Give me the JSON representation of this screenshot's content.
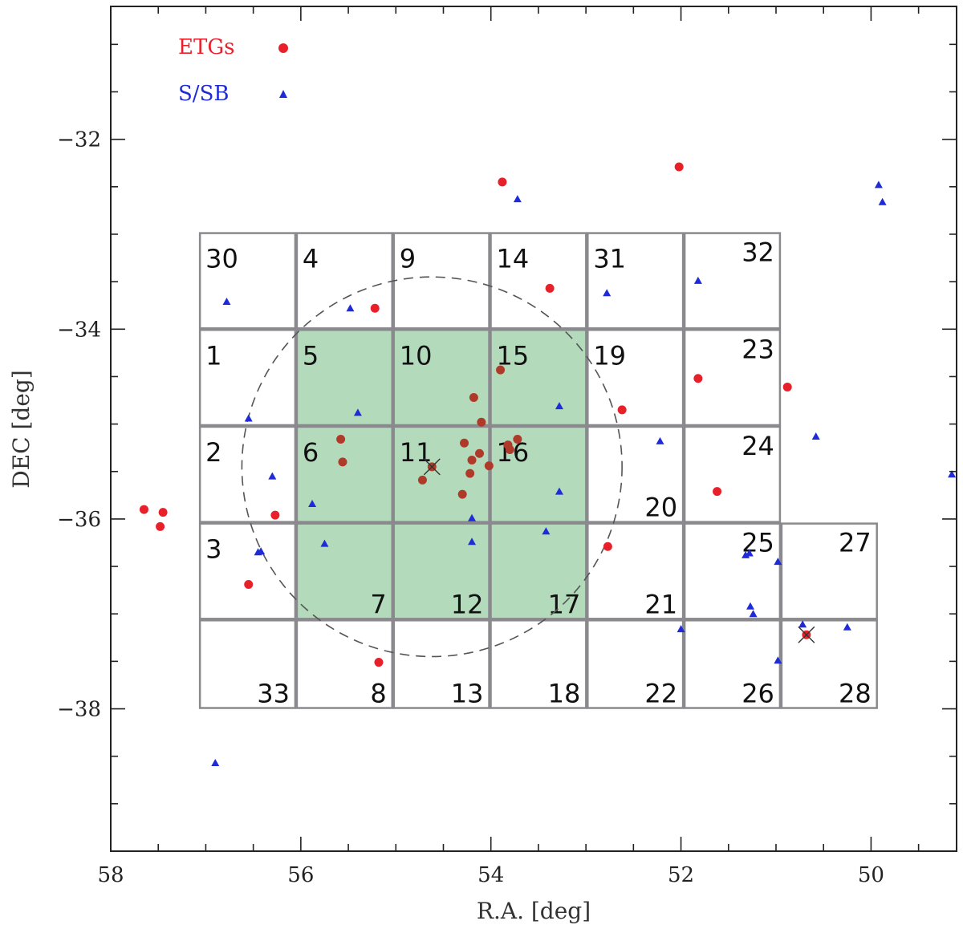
{
  "chart_data": {
    "type": "scatter",
    "xlabel": "R.A. [deg]",
    "ylabel": "DEC [deg]",
    "xlim": [
      58,
      49.1
    ],
    "ylim": [
      -39.5,
      -30.6
    ],
    "x_ticks": [
      "58",
      "56",
      "54",
      "52",
      "50"
    ],
    "y_ticks": [
      "-32",
      "-34",
      "-36",
      "-38"
    ],
    "legend": {
      "placement": "top-left",
      "entries": [
        {
          "label": "ETGs",
          "color": "#e8202a",
          "marker": "circle"
        },
        {
          "label": "S/SB",
          "color": "#1f2bd6",
          "marker": "triangle"
        }
      ]
    },
    "colors": {
      "etg": "#e8202a",
      "etg_inside": "#b03a2a",
      "ssb": "#1f2bd6",
      "highlight_fill": "#b3dbbb",
      "tile_border": "#8a8a8e",
      "circle": "#555555"
    },
    "circle": {
      "center_ra": 54.62,
      "center_dec": -35.45,
      "radius_deg": 2.0
    },
    "tiles": [
      {
        "id": "30",
        "ra_min": 56.05,
        "ra_max": 57.07,
        "dec_min": -34.0,
        "dec_max": -32.98,
        "highlight": false
      },
      {
        "id": "4",
        "ra_min": 55.03,
        "ra_max": 56.05,
        "dec_min": -34.0,
        "dec_max": -32.98,
        "highlight": false
      },
      {
        "id": "9",
        "ra_min": 54.01,
        "ra_max": 55.03,
        "dec_min": -34.0,
        "dec_max": -32.98,
        "highlight": false
      },
      {
        "id": "14",
        "ra_min": 52.99,
        "ra_max": 54.01,
        "dec_min": -34.0,
        "dec_max": -32.98,
        "highlight": false
      },
      {
        "id": "31",
        "ra_min": 51.97,
        "ra_max": 52.99,
        "dec_min": -34.0,
        "dec_max": -32.98,
        "highlight": false
      },
      {
        "id": "32",
        "ra_min": 50.95,
        "ra_max": 51.97,
        "dec_min": -34.0,
        "dec_max": -32.98,
        "highlight": false
      },
      {
        "id": "1",
        "ra_min": 56.05,
        "ra_max": 57.07,
        "dec_min": -35.02,
        "dec_max": -34.0,
        "highlight": false
      },
      {
        "id": "5",
        "ra_min": 55.03,
        "ra_max": 56.05,
        "dec_min": -35.02,
        "dec_max": -34.0,
        "highlight": true
      },
      {
        "id": "10",
        "ra_min": 54.01,
        "ra_max": 55.03,
        "dec_min": -35.02,
        "dec_max": -34.0,
        "highlight": true
      },
      {
        "id": "15",
        "ra_min": 52.99,
        "ra_max": 54.01,
        "dec_min": -35.02,
        "dec_max": -34.0,
        "highlight": true
      },
      {
        "id": "19",
        "ra_min": 51.97,
        "ra_max": 52.99,
        "dec_min": -35.02,
        "dec_max": -34.0,
        "highlight": false
      },
      {
        "id": "23",
        "ra_min": 50.95,
        "ra_max": 51.97,
        "dec_min": -35.02,
        "dec_max": -34.0,
        "highlight": false
      },
      {
        "id": "2",
        "ra_min": 56.05,
        "ra_max": 57.07,
        "dec_min": -36.04,
        "dec_max": -35.02,
        "highlight": false
      },
      {
        "id": "6",
        "ra_min": 55.03,
        "ra_max": 56.05,
        "dec_min": -36.04,
        "dec_max": -35.02,
        "highlight": true
      },
      {
        "id": "11",
        "ra_min": 54.01,
        "ra_max": 55.03,
        "dec_min": -36.04,
        "dec_max": -35.02,
        "highlight": true
      },
      {
        "id": "16",
        "ra_min": 52.99,
        "ra_max": 54.01,
        "dec_min": -36.04,
        "dec_max": -35.02,
        "highlight": true
      },
      {
        "id": "20",
        "ra_min": 51.97,
        "ra_max": 52.99,
        "dec_min": -36.04,
        "dec_max": -35.02,
        "highlight": false
      },
      {
        "id": "24",
        "ra_min": 50.95,
        "ra_max": 51.97,
        "dec_min": -36.04,
        "dec_max": -35.02,
        "highlight": false
      },
      {
        "id": "3",
        "ra_min": 56.05,
        "ra_max": 57.07,
        "dec_min": -37.06,
        "dec_max": -36.04,
        "highlight": false
      },
      {
        "id": "7",
        "ra_min": 55.03,
        "ra_max": 56.05,
        "dec_min": -37.06,
        "dec_max": -36.04,
        "highlight": true
      },
      {
        "id": "12",
        "ra_min": 54.01,
        "ra_max": 55.03,
        "dec_min": -37.06,
        "dec_max": -36.04,
        "highlight": true
      },
      {
        "id": "17",
        "ra_min": 52.99,
        "ra_max": 54.01,
        "dec_min": -37.06,
        "dec_max": -36.04,
        "highlight": true
      },
      {
        "id": "21",
        "ra_min": 51.97,
        "ra_max": 52.99,
        "dec_min": -37.06,
        "dec_max": -36.04,
        "highlight": false
      },
      {
        "id": "25",
        "ra_min": 50.95,
        "ra_max": 51.97,
        "dec_min": -37.06,
        "dec_max": -36.04,
        "highlight": false
      },
      {
        "id": "27",
        "ra_min": 49.93,
        "ra_max": 50.95,
        "dec_min": -37.06,
        "dec_max": -36.04,
        "highlight": false
      },
      {
        "id": "33",
        "ra_min": 56.05,
        "ra_max": 57.07,
        "dec_min": -38.0,
        "dec_max": -37.06,
        "highlight": false
      },
      {
        "id": "8",
        "ra_min": 55.03,
        "ra_max": 56.05,
        "dec_min": -38.0,
        "dec_max": -37.06,
        "highlight": false
      },
      {
        "id": "13",
        "ra_min": 54.01,
        "ra_max": 55.03,
        "dec_min": -38.0,
        "dec_max": -37.06,
        "highlight": false
      },
      {
        "id": "18",
        "ra_min": 52.99,
        "ra_max": 54.01,
        "dec_min": -38.0,
        "dec_max": -37.06,
        "highlight": false
      },
      {
        "id": "22",
        "ra_min": 51.97,
        "ra_max": 52.99,
        "dec_min": -38.0,
        "dec_max": -37.06,
        "highlight": false
      },
      {
        "id": "26",
        "ra_min": 50.95,
        "ra_max": 51.97,
        "dec_min": -38.0,
        "dec_max": -37.06,
        "highlight": false
      },
      {
        "id": "28",
        "ra_min": 49.93,
        "ra_max": 50.95,
        "dec_min": -38.0,
        "dec_max": -37.06,
        "highlight": false
      }
    ],
    "etg_points": [
      [
        53.88,
        -32.45
      ],
      [
        52.02,
        -32.29
      ],
      [
        53.38,
        -33.57
      ],
      [
        55.22,
        -33.78
      ],
      [
        53.9,
        -34.43
      ],
      [
        51.82,
        -34.52
      ],
      [
        50.88,
        -34.61
      ],
      [
        52.62,
        -34.85
      ],
      [
        54.18,
        -34.72
      ],
      [
        54.1,
        -34.98
      ],
      [
        55.58,
        -35.16
      ],
      [
        55.56,
        -35.4
      ],
      [
        54.28,
        -35.2
      ],
      [
        54.2,
        -35.38
      ],
      [
        54.22,
        -35.52
      ],
      [
        54.12,
        -35.31
      ],
      [
        53.82,
        -35.22
      ],
      [
        53.72,
        -35.16
      ],
      [
        53.8,
        -35.27
      ],
      [
        54.02,
        -35.44
      ],
      [
        54.62,
        -35.45
      ],
      [
        54.72,
        -35.59
      ],
      [
        54.3,
        -35.74
      ],
      [
        51.62,
        -35.71
      ],
      [
        56.27,
        -35.96
      ],
      [
        57.65,
        -35.9
      ],
      [
        57.45,
        -35.93
      ],
      [
        57.48,
        -36.08
      ],
      [
        52.77,
        -36.29
      ],
      [
        56.55,
        -36.69
      ],
      [
        55.18,
        -37.51
      ],
      [
        50.68,
        -37.22
      ]
    ],
    "ssb_points": [
      [
        53.72,
        -32.63
      ],
      [
        49.92,
        -32.48
      ],
      [
        49.88,
        -32.66
      ],
      [
        56.78,
        -33.71
      ],
      [
        55.48,
        -33.78
      ],
      [
        52.78,
        -33.62
      ],
      [
        51.82,
        -33.49
      ],
      [
        53.28,
        -34.81
      ],
      [
        55.4,
        -34.88
      ],
      [
        56.55,
        -34.94
      ],
      [
        52.22,
        -35.18
      ],
      [
        50.58,
        -35.13
      ],
      [
        56.3,
        -35.55
      ],
      [
        49.15,
        -35.53
      ],
      [
        55.88,
        -35.84
      ],
      [
        53.28,
        -35.71
      ],
      [
        54.2,
        -35.99
      ],
      [
        53.42,
        -36.13
      ],
      [
        54.2,
        -36.24
      ],
      [
        55.75,
        -36.26
      ],
      [
        56.45,
        -36.35
      ],
      [
        56.42,
        -36.34
      ],
      [
        51.32,
        -36.38
      ],
      [
        51.28,
        -36.36
      ],
      [
        50.98,
        -36.45
      ],
      [
        51.27,
        -36.92
      ],
      [
        51.24,
        -37.0
      ],
      [
        52.0,
        -37.16
      ],
      [
        50.72,
        -37.11
      ],
      [
        50.25,
        -37.14
      ],
      [
        50.98,
        -37.49
      ],
      [
        56.9,
        -38.57
      ]
    ],
    "cross_markers": [
      [
        54.62,
        -35.45
      ],
      [
        50.68,
        -37.22
      ]
    ]
  }
}
